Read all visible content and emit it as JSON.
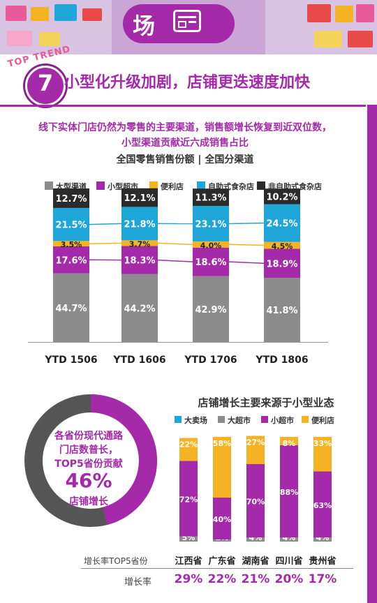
{
  "header": {
    "title": "场"
  },
  "trend": {
    "badge": "TOP TREND",
    "number": "7",
    "heading": "小型化升级加剧，店铺更迭速度加快"
  },
  "intro": {
    "line1": "线下实体门店仍然为零售的主要渠道，销售额增长恢复到近双位数，",
    "line2": "小型渠道贡献近六成销售占比"
  },
  "colors": {
    "large": "#8c8c8c",
    "mini": "#a52aaa",
    "convenience": "#f5b324",
    "self": "#1fa6d9",
    "nonself": "#2b2b2b",
    "hyper": "#1fa6d9",
    "super": "#8c8c8c"
  },
  "chart_data": [
    {
      "type": "bar",
      "stacked": true,
      "title": "全国零售销售份额 | 全国分渠道",
      "categories": [
        "YTD 1506",
        "YTD 1606",
        "YTD 1706",
        "YTD 1806"
      ],
      "series": [
        {
          "name": "大型渠道",
          "values": [
            44.7,
            44.2,
            42.9,
            41.8
          ],
          "labels": [
            "44.7%",
            "44.2%",
            "42.9%",
            "41.8%"
          ]
        },
        {
          "name": "小型超市",
          "values": [
            17.6,
            18.3,
            18.6,
            18.9
          ],
          "labels": [
            "17.6%",
            "18.3%",
            "18.6%",
            "18.9%"
          ]
        },
        {
          "name": "便利店",
          "values": [
            3.5,
            3.7,
            4.0,
            4.5
          ],
          "labels": [
            "3.5%",
            "3.7%",
            "4.0%",
            "4.5%"
          ]
        },
        {
          "name": "自助式食杂店",
          "values": [
            21.5,
            21.8,
            23.1,
            24.5
          ],
          "labels": [
            "21.5%",
            "21.8%",
            "23.1%",
            "24.5%"
          ]
        },
        {
          "name": "非自助式食杂店",
          "values": [
            12.7,
            12.1,
            11.3,
            10.2
          ],
          "labels": [
            "12.7%",
            "12.1%",
            "11.3%",
            "10.2%"
          ]
        }
      ]
    },
    {
      "type": "bar",
      "stacked": true,
      "title": "店铺增长主要来源于小型业态",
      "categories": [
        "江西省",
        "广东省",
        "湖南省",
        "四川省",
        "贵州省"
      ],
      "series": [
        {
          "name": "大卖场",
          "values": [
            0,
            0,
            0,
            0,
            0
          ]
        },
        {
          "name": "大超市",
          "values": [
            5,
            2,
            4,
            4,
            4
          ],
          "labels": [
            "5%",
            "2%",
            "4%",
            "4%",
            "4%"
          ]
        },
        {
          "name": "小超市",
          "values": [
            72,
            40,
            70,
            88,
            63
          ],
          "labels": [
            "72%",
            "40%",
            "70%",
            "88%",
            "63%"
          ]
        },
        {
          "name": "便利店",
          "values": [
            22,
            58,
            27,
            8,
            33
          ],
          "labels": [
            "22%",
            "58%",
            "27%",
            "8%",
            "33%"
          ]
        }
      ],
      "row_title": "增长率TOP5省份",
      "rate_label": "增长率",
      "rates": [
        "29%",
        "22%",
        "21%",
        "20%",
        "17%"
      ]
    }
  ],
  "donut": {
    "value": 46,
    "text1": "各省份现代通路",
    "text2": "门店数普长，",
    "text3": "TOP5省份贡献",
    "big": "46%",
    "text4": "店铺增长"
  }
}
